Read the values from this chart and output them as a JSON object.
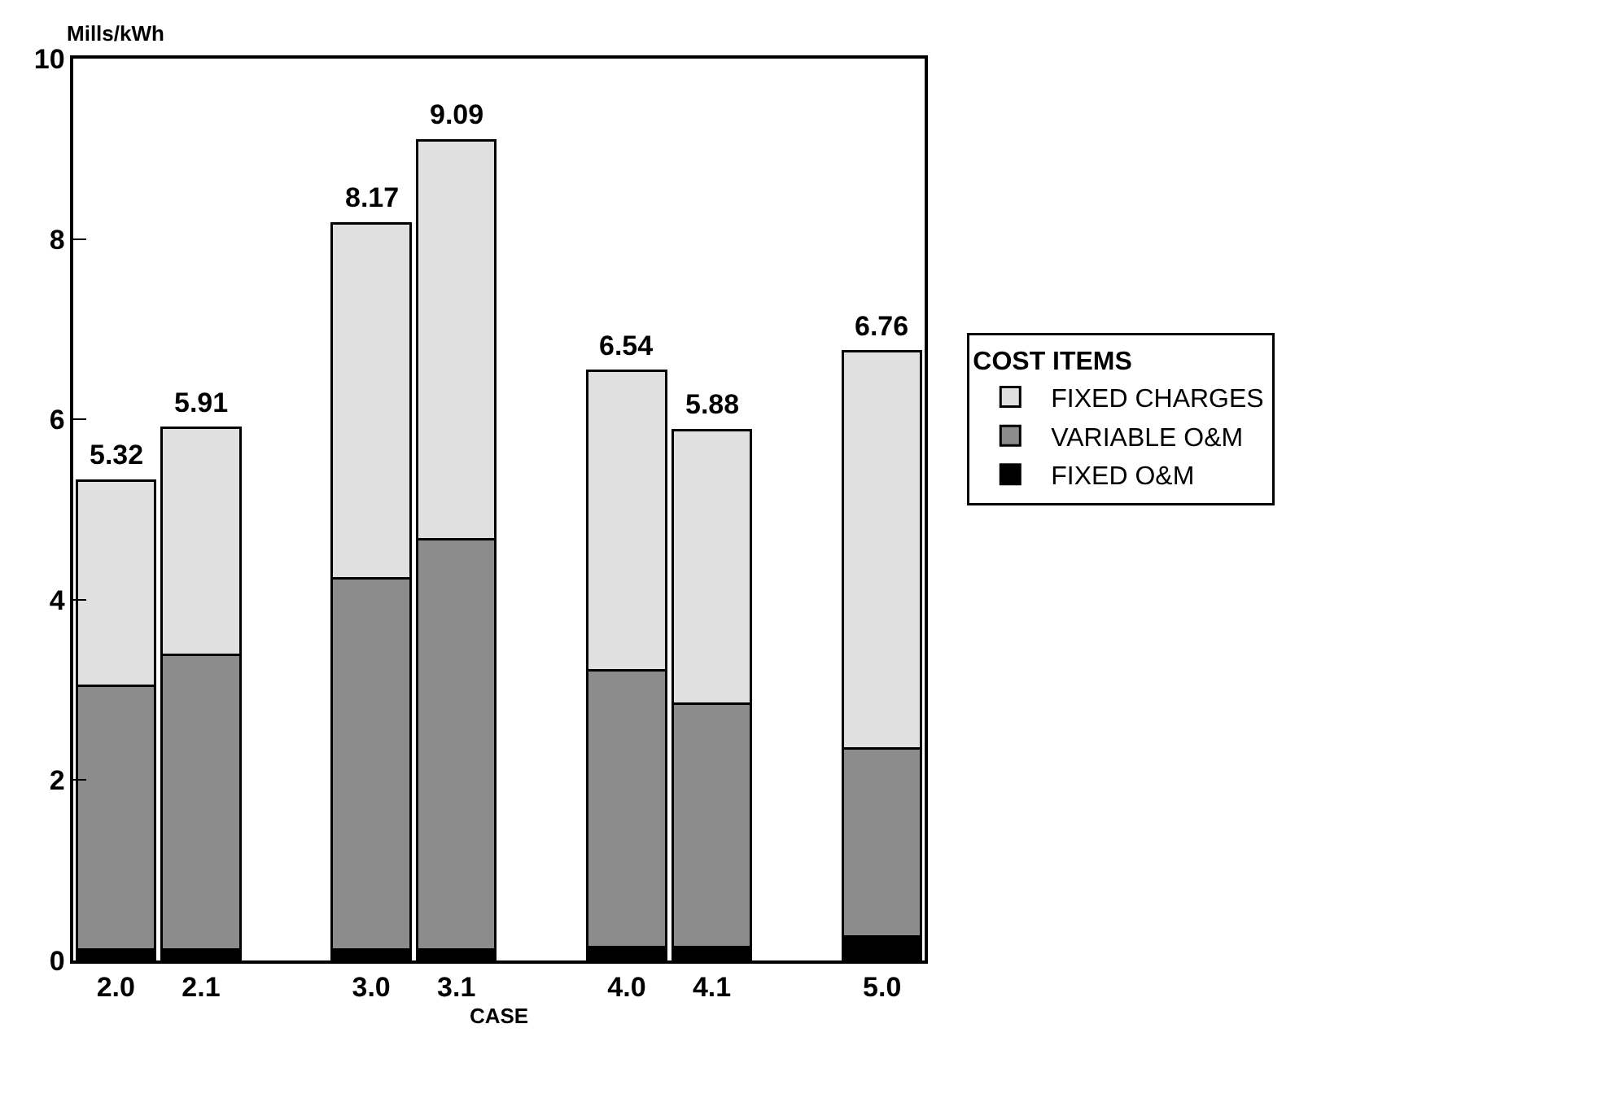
{
  "chart_data": {
    "type": "bar",
    "stacked": true,
    "xlabel": "CASE",
    "ylabel": "Mills/kWh",
    "legend_title": "COST ITEMS",
    "legend": "right",
    "grid": false,
    "categories": [
      "2.0",
      "2.1",
      null,
      "3.0",
      "3.1",
      null,
      "4.0",
      "4.1",
      null,
      "5.0"
    ],
    "series": [
      {
        "name": "FIXED O&M",
        "color": "#000000",
        "values": [
          0.12,
          0.12,
          null,
          0.12,
          0.12,
          null,
          0.15,
          0.15,
          null,
          0.27
        ]
      },
      {
        "name": "VARIABLE O&M",
        "color": "#8c8c8c",
        "values": [
          2.93,
          3.27,
          null,
          4.12,
          4.55,
          null,
          3.07,
          2.7,
          null,
          2.08
        ]
      },
      {
        "name": "FIXED CHARGES",
        "color": "#e0e0e0",
        "values": [
          2.27,
          2.52,
          null,
          3.93,
          4.42,
          null,
          3.32,
          3.03,
          null,
          4.41
        ]
      }
    ],
    "totals": [
      "5.32",
      "5.91",
      null,
      "8.17",
      "9.09",
      null,
      "6.54",
      "5.88",
      null,
      "6.76"
    ],
    "ylim": [
      0,
      10
    ],
    "yticks": [
      0,
      2,
      4,
      6,
      8,
      10
    ]
  }
}
